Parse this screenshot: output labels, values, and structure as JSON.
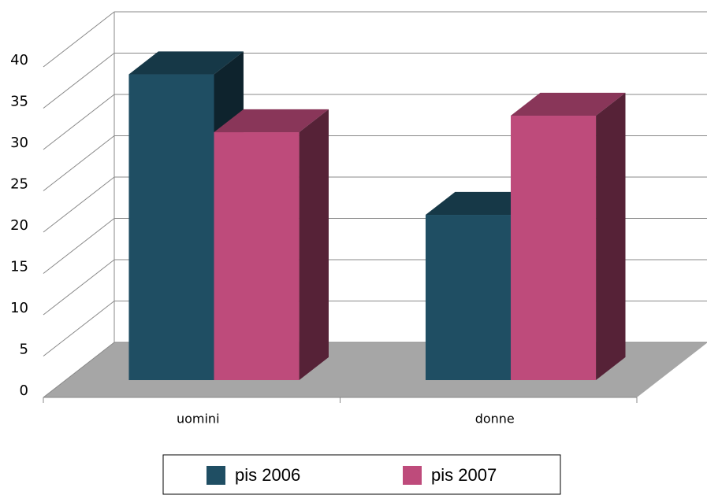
{
  "chart_data": {
    "type": "bar3d",
    "categories": [
      "uomini",
      "donne"
    ],
    "series": [
      {
        "name": "pis 2006",
        "color": "#1f4e63",
        "values": [
          37,
          20
        ]
      },
      {
        "name": "pis 2007",
        "color": "#be4b7b",
        "values": [
          30,
          32
        ]
      }
    ],
    "ylim": [
      0,
      40
    ],
    "yticks": [
      0,
      5,
      10,
      15,
      20,
      25,
      30,
      35,
      40
    ],
    "grid": true,
    "legend": "bottom"
  }
}
